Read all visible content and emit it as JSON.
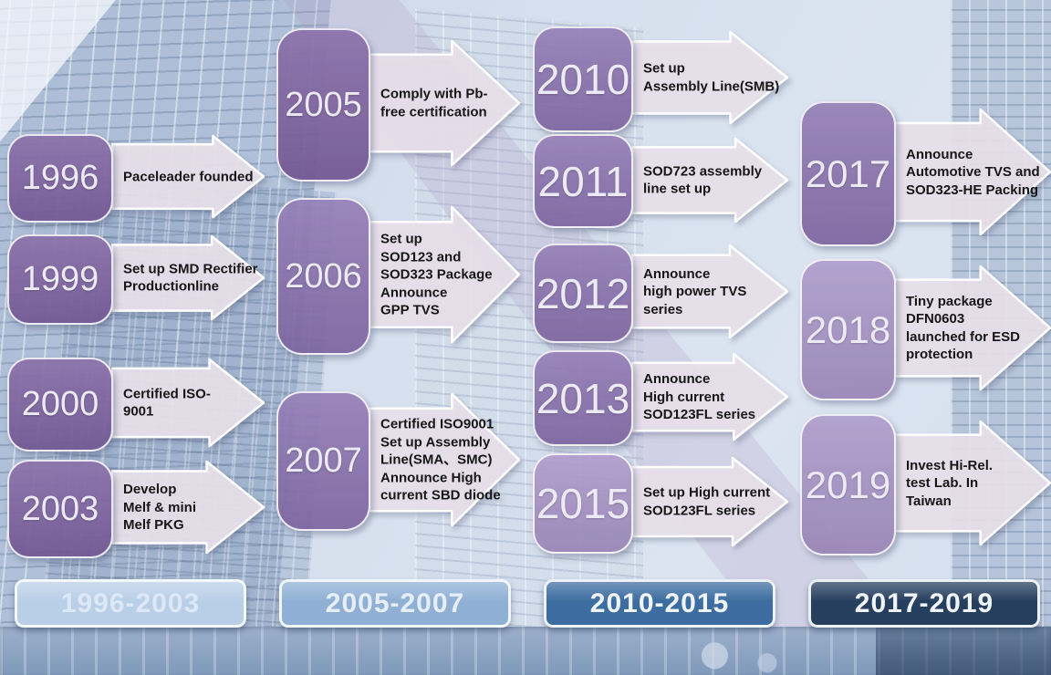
{
  "slide": {
    "kind": "company-milestones-timeline"
  },
  "colors": {
    "badge_purple_dark": "#7b5f9e",
    "badge_purple_medium": "#876eac",
    "badge_purple_light": "#a58fc4",
    "arrow_fill": "#e9e2ec",
    "period_1996_2003": "#b9cfe7",
    "period_2005_2007": "#8fb0d4",
    "period_2010_2015": "#3d6da0",
    "period_2017_2019": "#263f5e",
    "background_blue": "#d8e2ee"
  },
  "groups": [
    {
      "period": "1996-2003",
      "milestones": [
        {
          "year": "1996",
          "text": "Paceleader founded"
        },
        {
          "year": "1999",
          "text": "Set up SMD Rectifier\nProductionline"
        },
        {
          "year": "2000",
          "text": "Certified ISO-\n9001"
        },
        {
          "year": "2003",
          "text": "Develop\nMelf & mini\nMelf PKG"
        }
      ]
    },
    {
      "period": "2005-2007",
      "milestones": [
        {
          "year": "2005",
          "text": "Comply with Pb-\nfree certification"
        },
        {
          "year": "2006",
          "text": "Set up\nSOD123 and\nSOD323 Package\nAnnounce\nGPP TVS"
        },
        {
          "year": "2007",
          "text": "Certified ISO9001\nSet up Assembly\nLine(SMA、SMC)\nAnnounce High\ncurrent SBD diode"
        }
      ]
    },
    {
      "period": "2010-2015",
      "milestones": [
        {
          "year": "2010",
          "text": "Set up\nAssembly Line(SMB)"
        },
        {
          "year": "2011",
          "text": "SOD723 assembly\nline set up"
        },
        {
          "year": "2012",
          "text": "Announce\nhigh power TVS\nseries"
        },
        {
          "year": "2013",
          "text": "Announce\nHigh current\nSOD123FL series"
        },
        {
          "year": "2015",
          "text": "Set up High current\nSOD123FL series"
        }
      ]
    },
    {
      "period": "2017-2019",
      "milestones": [
        {
          "year": "2017",
          "text": "Announce\nAutomotive TVS and\nSOD323-HE Packing"
        },
        {
          "year": "2018",
          "text": "Tiny package\nDFN0603\nlaunched for ESD\nprotection"
        },
        {
          "year": "2019",
          "text": "Invest Hi-Rel.\ntest Lab. In\nTaiwan"
        }
      ]
    }
  ]
}
